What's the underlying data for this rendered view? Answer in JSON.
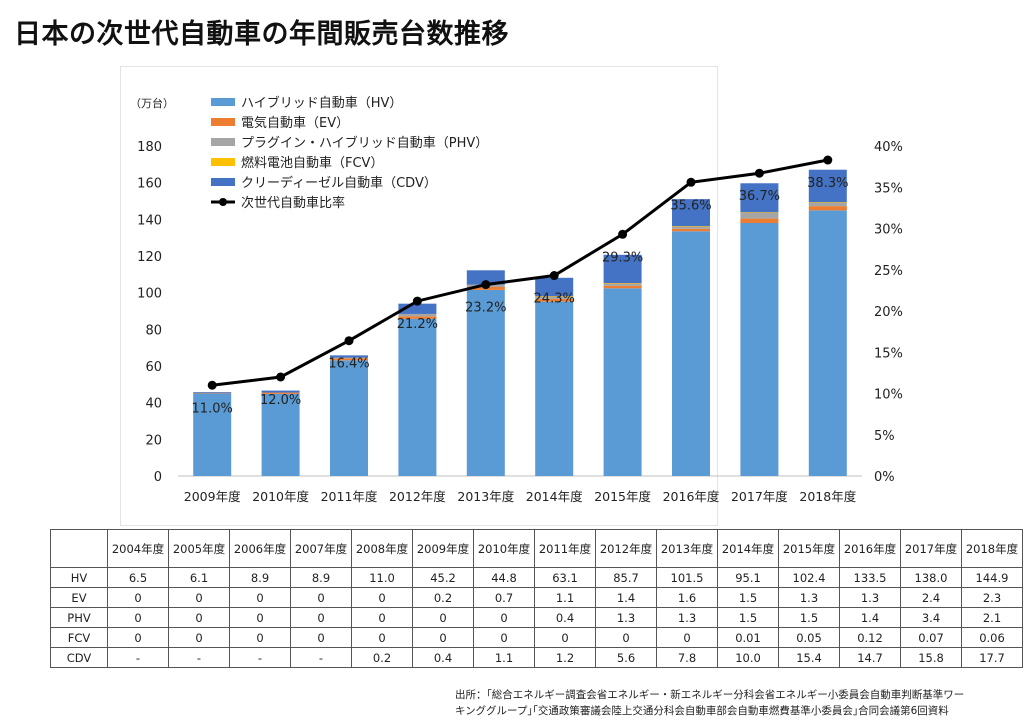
{
  "title": "日本の次世代自動車の年間販売台数推移",
  "chart_data": {
    "type": "bar",
    "stacked": true,
    "unit_label": "（万台）",
    "categories": [
      "2009年度",
      "2010年度",
      "2011年度",
      "2012年度",
      "2013年度",
      "2014年度",
      "2015年度",
      "2016年度",
      "2017年度",
      "2018年度"
    ],
    "series": [
      {
        "name": "ハイブリッド自動車（HV）",
        "color": "#5b9bd5",
        "values": [
          45.2,
          44.8,
          63.1,
          85.7,
          101.5,
          95.1,
          102.4,
          133.5,
          138.0,
          144.9
        ]
      },
      {
        "name": "電気自動車（EV）",
        "color": "#ed7d31",
        "values": [
          0.2,
          0.7,
          1.1,
          1.4,
          1.6,
          1.5,
          1.3,
          1.3,
          2.4,
          2.3
        ]
      },
      {
        "name": "プラグイン・ハイブリッド自動車（PHV）",
        "color": "#a5a5a5",
        "values": [
          0,
          0,
          0.4,
          1.3,
          1.3,
          1.5,
          1.5,
          1.4,
          3.4,
          2.1
        ]
      },
      {
        "name": "燃料電池自動車（FCV）",
        "color": "#ffc000",
        "values": [
          0,
          0,
          0,
          0,
          0,
          0.01,
          0.05,
          0.12,
          0.07,
          0.06
        ]
      },
      {
        "name": "クリーディーゼル自動車（CDV）",
        "color": "#4472c4",
        "values": [
          0.4,
          1.1,
          1.2,
          5.6,
          7.8,
          10.0,
          15.4,
          14.7,
          15.8,
          17.7
        ]
      }
    ],
    "line_series": {
      "name": "次世代自動車比率",
      "color": "#000000",
      "axis": "right",
      "values": [
        11.0,
        12.0,
        16.4,
        21.2,
        23.2,
        24.3,
        29.3,
        35.6,
        36.7,
        38.3
      ],
      "labels": [
        "11.0%",
        "12.0%",
        "16.4%",
        "21.2%",
        "23.2%",
        "24.3%",
        "29.3%",
        "35.6%",
        "36.7%",
        "38.3%"
      ]
    },
    "ylim": [
      0,
      180
    ],
    "y_ticks": [
      "0",
      "20",
      "40",
      "60",
      "80",
      "100",
      "120",
      "140",
      "160",
      "180"
    ],
    "y2lim": [
      0,
      40
    ],
    "y2_ticks": [
      "0%",
      "5%",
      "10%",
      "15%",
      "20%",
      "25%",
      "30%",
      "35%",
      "40%"
    ],
    "legend_position": "top-left",
    "grid": false
  },
  "table": {
    "headers": [
      "",
      "2004年度",
      "2005年度",
      "2006年度",
      "2007年度",
      "2008年度",
      "2009年度",
      "2010年度",
      "2011年度",
      "2012年度",
      "2013年度",
      "2014年度",
      "2015年度",
      "2016年度",
      "2017年度",
      "2018年度"
    ],
    "rows": [
      [
        "HV",
        "6.5",
        "6.1",
        "8.9",
        "8.9",
        "11.0",
        "45.2",
        "44.8",
        "63.1",
        "85.7",
        "101.5",
        "95.1",
        "102.4",
        "133.5",
        "138.0",
        "144.9"
      ],
      [
        "EV",
        "0",
        "0",
        "0",
        "0",
        "0",
        "0.2",
        "0.7",
        "1.1",
        "1.4",
        "1.6",
        "1.5",
        "1.3",
        "1.3",
        "2.4",
        "2.3"
      ],
      [
        "PHV",
        "0",
        "0",
        "0",
        "0",
        "0",
        "0",
        "0",
        "0.4",
        "1.3",
        "1.3",
        "1.5",
        "1.5",
        "1.4",
        "3.4",
        "2.1"
      ],
      [
        "FCV",
        "0",
        "0",
        "0",
        "0",
        "0",
        "0",
        "0",
        "0",
        "0",
        "0",
        "0.01",
        "0.05",
        "0.12",
        "0.07",
        "0.06"
      ],
      [
        "CDV",
        "-",
        "-",
        "-",
        "-",
        "0.2",
        "0.4",
        "1.1",
        "1.2",
        "5.6",
        "7.8",
        "10.0",
        "15.4",
        "14.7",
        "15.8",
        "17.7"
      ]
    ]
  },
  "source_lines": [
    "出所：｢総合エネルギー調査会省エネルギー・新エネルギー分科会省エネルギー小委員会自動車判断基準ワー",
    "キンググループ｣｢交通政策審議会陸上交通分科会自動車部会自動車燃費基準小委員会｣合同会議第6回資料"
  ]
}
